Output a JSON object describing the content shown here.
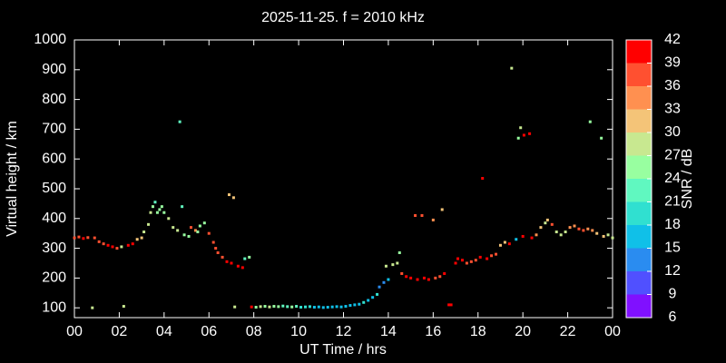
{
  "chart_data": {
    "type": "scatter",
    "title": "2025-11-25. f = 2010 kHz",
    "xlabel": "UT Time / hrs",
    "ylabel": "Virtual height / km",
    "xlim": [
      0,
      24
    ],
    "xticks": [
      {
        "value": 0,
        "label": "00"
      },
      {
        "value": 2,
        "label": "02"
      },
      {
        "value": 4,
        "label": "04"
      },
      {
        "value": 6,
        "label": "06"
      },
      {
        "value": 8,
        "label": "08"
      },
      10,
      12,
      14,
      16,
      18,
      20,
      22,
      {
        "value": 24,
        "label": "00"
      }
    ],
    "ylim": [
      67,
      1000
    ],
    "yticks": [
      100,
      200,
      300,
      400,
      500,
      600,
      700,
      800,
      900,
      1000
    ],
    "colorbar": {
      "label": "SNR / dB",
      "lim": [
        6,
        42
      ],
      "ticks": [
        6,
        9,
        12,
        15,
        18,
        21,
        24,
        27,
        30,
        33,
        36,
        39,
        42
      ],
      "colors": [
        "#8010ff",
        "#5050ff",
        "#2a8cf0",
        "#10c0e8",
        "#30e0d0",
        "#60f8c0",
        "#98ffa0",
        "#c8e890",
        "#f4c478",
        "#ff9050",
        "#ff5030",
        "#ff0000"
      ]
    },
    "series": [
      {
        "x": [
          0.0,
          0.2,
          0.4,
          0.6,
          0.8,
          0.9,
          1.1,
          1.3,
          1.5,
          1.7,
          1.9,
          2.1,
          2.2,
          2.4,
          2.6,
          2.8,
          3.0,
          3.1,
          3.3,
          3.4,
          3.5,
          3.6,
          3.7,
          3.8,
          3.9,
          4.0,
          4.2,
          4.4,
          4.6,
          4.7,
          4.8,
          4.9,
          5.1,
          5.2,
          5.4,
          5.5,
          5.6,
          5.8,
          6.0,
          6.2,
          6.3,
          6.4,
          6.6,
          6.8,
          6.9,
          7.0,
          7.1,
          7.15,
          7.3,
          7.5,
          7.6,
          7.8,
          7.9,
          8.1,
          8.3,
          8.5,
          8.7,
          8.9,
          9.1,
          9.3,
          9.5,
          9.7,
          9.9,
          10.1,
          10.3,
          10.5,
          10.7,
          10.9,
          11.1,
          11.3,
          11.5,
          11.7,
          11.9,
          12.1,
          12.3,
          12.5,
          12.7,
          12.9,
          13.1,
          13.3,
          13.5,
          13.6,
          13.8,
          13.9,
          14.0,
          14.2,
          14.4,
          14.5,
          14.6,
          14.8,
          15.0,
          15.2,
          15.3,
          15.5,
          15.6,
          15.8,
          16.0,
          16.1,
          16.3,
          16.4,
          16.5,
          16.7,
          16.8,
          17.0,
          17.1,
          17.3,
          17.5,
          17.7,
          17.9,
          18.1,
          18.2,
          18.4,
          18.6,
          18.8,
          19.0,
          19.2,
          19.4,
          19.5,
          19.7,
          19.8,
          19.9,
          20.0,
          20.05,
          20.3,
          20.4,
          20.6,
          20.8,
          21.0,
          21.1,
          21.3,
          21.5,
          21.7,
          21.9,
          22.1,
          22.3,
          22.5,
          22.7,
          22.9,
          23.0,
          23.1,
          23.3,
          23.5,
          23.6,
          23.8,
          24.0
        ],
        "values": [
          335,
          338,
          333,
          336,
          100,
          335,
          322,
          315,
          310,
          305,
          300,
          305,
          105,
          310,
          315,
          330,
          335,
          355,
          380,
          420,
          440,
          455,
          420,
          430,
          440,
          420,
          400,
          370,
          360,
          725,
          440,
          345,
          340,
          370,
          360,
          355,
          375,
          385,
          350,
          320,
          300,
          285,
          270,
          255,
          480,
          250,
          470,
          103,
          240,
          235,
          265,
          270,
          103,
          102,
          104,
          105,
          103,
          105,
          104,
          106,
          104,
          103,
          105,
          102,
          103,
          104,
          102,
          103,
          101,
          102,
          103,
          104,
          103,
          105,
          108,
          110,
          112,
          118,
          125,
          135,
          145,
          170,
          185,
          240,
          195,
          245,
          250,
          285,
          215,
          205,
          200,
          410,
          195,
          410,
          200,
          195,
          395,
          200,
          205,
          430,
          215,
          110,
          110,
          250,
          265,
          260,
          250,
          255,
          260,
          270,
          535,
          265,
          275,
          280,
          310,
          320,
          315,
          905,
          330,
          670,
          705,
          340,
          680,
          685,
          335,
          345,
          370,
          385,
          395,
          380,
          355,
          345,
          355,
          370,
          375,
          365,
          360,
          365,
          725,
          360,
          350,
          670,
          340,
          345,
          335
        ],
        "snr": [
          36,
          36,
          39,
          36,
          27,
          36,
          36,
          36,
          39,
          39,
          36,
          27,
          27,
          39,
          39,
          30,
          30,
          27,
          27,
          27,
          24,
          21,
          24,
          24,
          24,
          24,
          27,
          27,
          27,
          21,
          21,
          24,
          24,
          36,
          33,
          24,
          24,
          24,
          36,
          36,
          36,
          36,
          36,
          39,
          30,
          39,
          30,
          27,
          39,
          42,
          21,
          24,
          39,
          24,
          27,
          24,
          27,
          24,
          24,
          21,
          21,
          24,
          21,
          18,
          18,
          18,
          15,
          15,
          15,
          15,
          15,
          15,
          15,
          15,
          15,
          15,
          15,
          18,
          15,
          15,
          18,
          12,
          12,
          27,
          15,
          27,
          27,
          24,
          36,
          39,
          39,
          36,
          39,
          36,
          39,
          39,
          33,
          36,
          36,
          30,
          39,
          39,
          39,
          39,
          39,
          39,
          36,
          36,
          36,
          39,
          39,
          39,
          36,
          36,
          30,
          30,
          39,
          27,
          15,
          24,
          27,
          39,
          39,
          39,
          39,
          33,
          30,
          27,
          30,
          36,
          27,
          27,
          27,
          33,
          33,
          36,
          36,
          33,
          24,
          33,
          30,
          24,
          30,
          27,
          27
        ]
      }
    ]
  }
}
